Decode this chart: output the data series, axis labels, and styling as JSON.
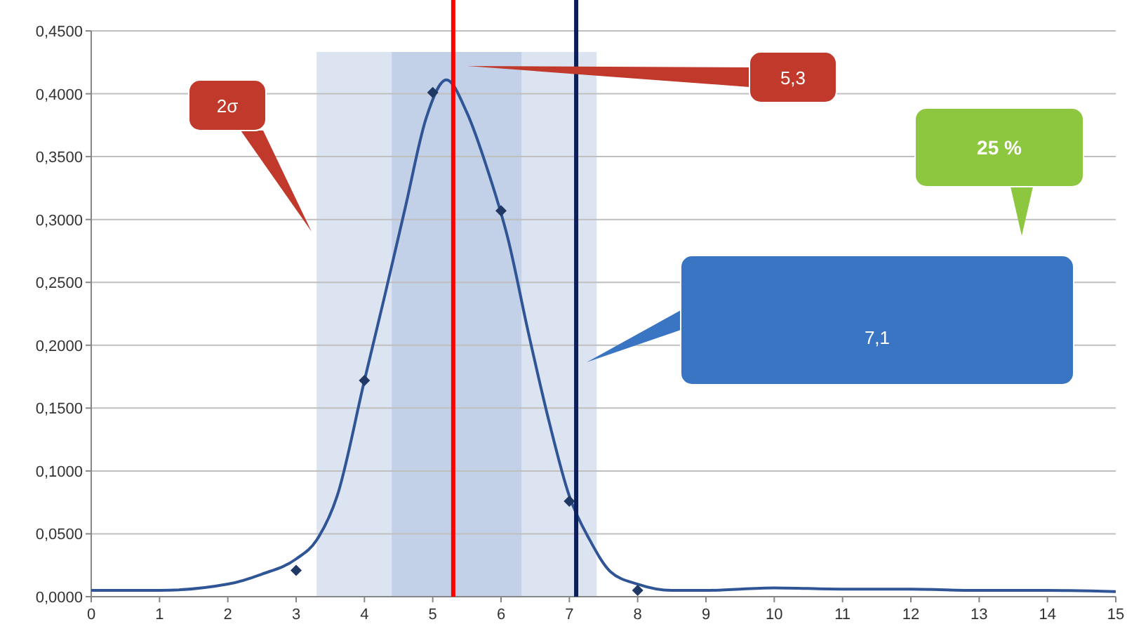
{
  "chart_data": {
    "type": "line",
    "xlim": [
      0,
      15
    ],
    "ylim": [
      0,
      0.45
    ],
    "xticks": [
      0,
      1,
      2,
      3,
      4,
      5,
      6,
      7,
      8,
      9,
      10,
      11,
      12,
      13,
      14,
      15
    ],
    "yticks": [
      {
        "value": 0,
        "label": "0,0000"
      },
      {
        "value": 0.05,
        "label": "0,0500"
      },
      {
        "value": 0.1,
        "label": "0,1000"
      },
      {
        "value": 0.15,
        "label": "0,1500"
      },
      {
        "value": 0.2,
        "label": "0,2000"
      },
      {
        "value": 0.25,
        "label": "0,2500"
      },
      {
        "value": 0.3,
        "label": "0,3000"
      },
      {
        "value": 0.35,
        "label": "0,3500"
      },
      {
        "value": 0.4,
        "label": "0,4000"
      },
      {
        "value": 0.45,
        "label": "0,4500"
      }
    ],
    "grid": "y",
    "series": [
      {
        "color": "#2f5597",
        "marker": "none",
        "line_style": "solid",
        "x": [
          0,
          1,
          2,
          2.5,
          3,
          3.3,
          3.6,
          4,
          4.3,
          4.6,
          4.9,
          5.2,
          5.5,
          5.8,
          6.1,
          6.4,
          6.7,
          7,
          7.3,
          7.6,
          8,
          8.5,
          9,
          10,
          11,
          12,
          13,
          14,
          15
        ],
        "values": [
          0.005,
          0.005,
          0.01,
          0.018,
          0.03,
          0.045,
          0.08,
          0.172,
          0.24,
          0.31,
          0.38,
          0.411,
          0.385,
          0.34,
          0.285,
          0.21,
          0.14,
          0.08,
          0.045,
          0.02,
          0.01,
          0.005,
          0.005,
          0.007,
          0.006,
          0.006,
          0.005,
          0.005,
          0.004
        ]
      },
      {
        "type": "scatter",
        "color": "#1f3864",
        "marker": "diamond",
        "x": [
          3,
          4,
          5,
          6,
          7,
          8
        ],
        "values": [
          0.021,
          0.172,
          0.401,
          0.307,
          0.076,
          0.005
        ]
      }
    ],
    "ref_lines": [
      {
        "axis": "x",
        "value": 5.3,
        "color": "#ff0000"
      },
      {
        "axis": "x",
        "value": 7.1,
        "color": "#0b1f5c"
      }
    ],
    "bands": [
      {
        "axis": "x",
        "from": 3.3,
        "to": 7.4,
        "color": "#dce4f2"
      },
      {
        "axis": "x",
        "from": 4.4,
        "to": 6.3,
        "color": "#c3d1e8"
      }
    ],
    "annotations": [
      "2σ",
      "5,3",
      "25 %",
      "7,1"
    ]
  }
}
